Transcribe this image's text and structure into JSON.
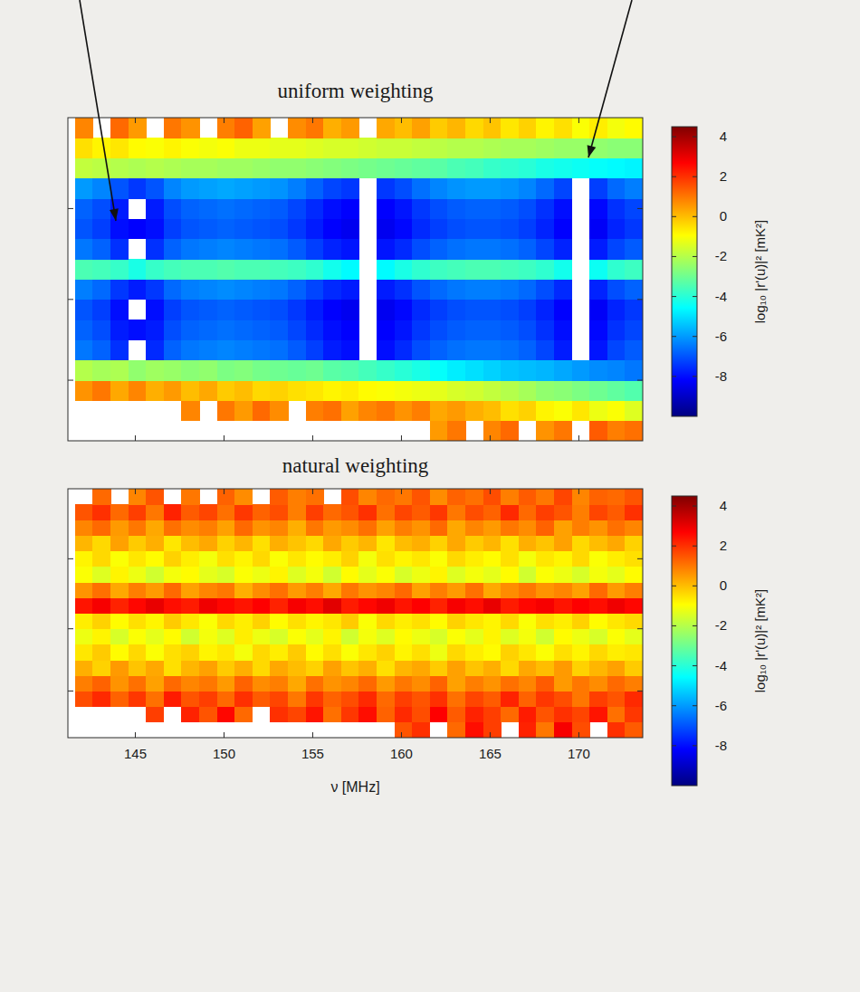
{
  "chart_data": [
    {
      "type": "heatmap",
      "title": "uniform weighting",
      "xlim": [
        141.2,
        173.6
      ],
      "xticks": [
        145,
        150,
        155,
        160,
        165,
        170
      ],
      "ylim": [
        0,
        16
      ],
      "yticks": [
        3,
        7,
        11.5
      ],
      "tick_labels": false,
      "x_bins": [
        141.6,
        142.6,
        143.6,
        144.6,
        145.6,
        146.6,
        147.6,
        148.6,
        149.6,
        150.6,
        151.6,
        152.6,
        153.6,
        154.6,
        155.6,
        156.6,
        157.6,
        158.6,
        159.6,
        160.6,
        161.6,
        162.6,
        163.6,
        164.6,
        165.6,
        166.6,
        167.6,
        168.6,
        169.6,
        170.6,
        171.6,
        172.6,
        173.6
      ],
      "y_bins": [
        0,
        1,
        2,
        3,
        4,
        5,
        6,
        7,
        8,
        9,
        10,
        11,
        12,
        13,
        14,
        15,
        16
      ],
      "cells": [
        [
          null,
          null,
          null,
          null,
          null,
          null,
          null,
          null,
          null,
          null,
          null,
          null,
          null,
          null,
          null,
          null,
          null,
          null,
          null,
          null,
          0.5,
          1,
          null,
          0.8,
          1.2,
          null,
          0.6,
          1,
          null,
          1.4,
          0.9,
          1.1
        ],
        [
          null,
          null,
          null,
          null,
          null,
          null,
          0.8,
          null,
          1,
          0.5,
          1.2,
          0.7,
          null,
          0.9,
          1.1,
          0.4,
          0.8,
          1,
          0.6,
          0.9,
          0.3,
          0.5,
          0.2,
          0,
          -0.5,
          -0.3,
          -0.8,
          -1,
          -0.6,
          -1.2,
          -1,
          -1.4
        ],
        [
          0.6,
          1,
          0.3,
          0.8,
          0.2,
          0.5,
          0,
          0.3,
          -0.2,
          0,
          -0.4,
          -0.3,
          -0.5,
          -0.6,
          -0.8,
          -0.7,
          -0.9,
          -1,
          -1.1,
          -1.2,
          -1.3,
          -1.5,
          -1.6,
          -1.8,
          -2,
          -2.2,
          -2.5,
          -2.6,
          -2.8,
          -3,
          -3.2,
          -3.4
        ],
        [
          -2,
          -2.2,
          -2.1,
          -2.5,
          -2.3,
          -2.4,
          -2.6,
          -2.5,
          -2.8,
          -2.7,
          -2.9,
          -3,
          -3.1,
          -3,
          -3.3,
          -3.4,
          -3.6,
          -3.8,
          -4,
          -4.2,
          -4.5,
          -4.8,
          -5,
          -5.2,
          -5.4,
          -5.5,
          -5.6,
          -5.8,
          -6,
          -6.2,
          -6.3,
          -6.5
        ],
        [
          -6.5,
          -6.8,
          -7.5,
          null,
          -7.6,
          -6.8,
          -6.5,
          -6.4,
          -6.3,
          -6.4,
          -6.5,
          -6.6,
          -6.9,
          -7.3,
          -7.8,
          -8,
          null,
          -8,
          -7.6,
          -7.1,
          -6.8,
          -6.6,
          -6.5,
          -6.5,
          -6.6,
          -6.8,
          -7.2,
          -7.8,
          null,
          -7.9,
          -7.2,
          -6.9
        ],
        [
          -6.8,
          -7.1,
          -7.8,
          -8,
          -7.8,
          -7.1,
          -6.8,
          -6.7,
          -6.6,
          -6.7,
          -6.8,
          -6.9,
          -7.2,
          -7.6,
          -8,
          -8.2,
          null,
          -8.2,
          -7.9,
          -7.4,
          -7.1,
          -6.9,
          -6.8,
          -6.8,
          -6.9,
          -7.1,
          -7.5,
          -8,
          null,
          -8.1,
          -7.5,
          -7.2
        ],
        [
          -7,
          -7.3,
          -8,
          null,
          -8,
          -7.3,
          -7,
          -6.9,
          -6.8,
          -6.9,
          -7,
          -7.1,
          -7.4,
          -7.8,
          -8.2,
          -8.4,
          null,
          -8.4,
          -8.1,
          -7.6,
          -7.3,
          -7.1,
          -7,
          -7,
          -7.1,
          -7.3,
          -7.7,
          -8.2,
          null,
          -8.3,
          -7.7,
          -7.4
        ],
        [
          -6.4,
          -6.7,
          -7.4,
          -7.8,
          -7.4,
          -6.7,
          -6.4,
          -6.3,
          -6.2,
          -6.3,
          -6.4,
          -6.5,
          -6.8,
          -7.2,
          -7.6,
          -7.8,
          null,
          -7.8,
          -7.5,
          -7,
          -6.7,
          -6.5,
          -6.4,
          -6.4,
          -6.5,
          -6.7,
          -7.1,
          -7.6,
          null,
          -7.7,
          -7.1,
          -6.8
        ],
        [
          -3.5,
          -3.6,
          -3.8,
          -4.2,
          -3.8,
          -3.6,
          -3.5,
          -3.5,
          -3.4,
          -3.5,
          -3.5,
          -3.6,
          -3.7,
          -3.9,
          -4.3,
          -4.6,
          null,
          -4.6,
          -4.2,
          -3.9,
          -3.7,
          -3.6,
          -3.5,
          -3.5,
          -3.6,
          -3.7,
          -3.9,
          -4.3,
          null,
          -4.4,
          -3.9,
          -3.7
        ],
        [
          -6.5,
          -6.8,
          -7.5,
          null,
          -7.5,
          -6.8,
          -6.5,
          -6.4,
          -6.3,
          -6.4,
          -6.5,
          -6.6,
          -6.9,
          -7.3,
          -7.7,
          -7.9,
          null,
          -7.9,
          -7.6,
          -7.1,
          -6.8,
          -6.6,
          -6.5,
          -6.5,
          -6.6,
          -6.8,
          -7.2,
          -7.7,
          null,
          -7.8,
          -7.2,
          -6.9
        ],
        [
          -7,
          -7.3,
          -8,
          -8.2,
          -8,
          -7.3,
          -7,
          -6.9,
          -6.8,
          -6.9,
          -7,
          -7.1,
          -7.4,
          -7.8,
          -8.2,
          -8.4,
          null,
          -8.4,
          -8.1,
          -7.6,
          -7.3,
          -7.1,
          -7,
          -7,
          -7.1,
          -7.3,
          -7.7,
          -8.2,
          null,
          -8.3,
          -7.7,
          -7.4
        ],
        [
          -6.8,
          -7.1,
          -7.8,
          null,
          -7.8,
          -7.1,
          -6.8,
          -6.7,
          -6.6,
          -6.7,
          -6.8,
          -6.9,
          -7.2,
          -7.6,
          -8,
          -8.2,
          null,
          -8.2,
          -7.9,
          -7.4,
          -7.1,
          -6.9,
          -6.8,
          -6.8,
          -6.9,
          -7.1,
          -7.5,
          -8,
          null,
          -8.1,
          -7.5,
          -7.2
        ],
        [
          -6,
          -6.3,
          -7,
          -7.4,
          -7,
          -6.3,
          -6,
          -5.9,
          -5.8,
          -5.9,
          -6,
          -6.1,
          -6.4,
          -6.8,
          -7.2,
          -7.4,
          null,
          -7.4,
          -7.1,
          -6.6,
          -6.3,
          -6.1,
          -6,
          -6,
          -6.1,
          -6.3,
          -6.7,
          -7.2,
          null,
          -7.3,
          -6.7,
          -6.4
        ],
        [
          -1.8,
          -1.9,
          -2,
          -2.1,
          -2,
          -2.1,
          -2.2,
          -2.2,
          -2.3,
          -2.3,
          -2.4,
          -2.5,
          -2.5,
          -2.6,
          -2.7,
          -2.8,
          -2.9,
          -3,
          -3.1,
          -3.2,
          -3.3,
          -3.5,
          -3.6,
          -3.8,
          -3.9,
          -4,
          -4.2,
          -4.3,
          -4.4,
          -4.5,
          -4.6,
          -4.7
        ],
        [
          -0.5,
          -0.8,
          -0.6,
          -0.9,
          -1,
          -0.8,
          -1,
          -1.1,
          -1,
          -1.2,
          -1.2,
          -1.3,
          -1.3,
          -1.4,
          -1.5,
          -1.5,
          -1.6,
          -1.7,
          -1.7,
          -1.8,
          -1.9,
          -2,
          -2,
          -2.1,
          -2.2,
          -2.2,
          -2.3,
          -2.4,
          -2.4,
          -2.5,
          -2.6,
          -2.6
        ],
        [
          0.8,
          null,
          1.2,
          0.5,
          null,
          1,
          0.6,
          null,
          0.9,
          1.3,
          0.4,
          null,
          0.7,
          1,
          0.2,
          0.5,
          null,
          0.3,
          0,
          0.4,
          -0.2,
          0.1,
          -0.4,
          -0.1,
          -0.6,
          -0.3,
          -0.8,
          -0.5,
          -1,
          -0.7,
          -1.1,
          -0.9
        ]
      ],
      "color_range": [
        -10,
        4.5
      ],
      "color_ticks": [
        -8,
        -6,
        -4,
        -2,
        0,
        2,
        4
      ],
      "color_label": "log₁₀ |r'(u)|² [mK²]"
    },
    {
      "type": "heatmap",
      "title": "natural weighting",
      "x_label": "ν [MHz]",
      "xlim": [
        141.2,
        173.6
      ],
      "xticks": [
        145,
        150,
        155,
        160,
        165,
        170
      ],
      "ylim": [
        0,
        16
      ],
      "yticks": [
        3,
        7,
        11.5
      ],
      "tick_labels": "x",
      "x_bins": [
        141.6,
        142.6,
        143.6,
        144.6,
        145.6,
        146.6,
        147.6,
        148.6,
        149.6,
        150.6,
        151.6,
        152.6,
        153.6,
        154.6,
        155.6,
        156.6,
        157.6,
        158.6,
        159.6,
        160.6,
        161.6,
        162.6,
        163.6,
        164.6,
        165.6,
        166.6,
        167.6,
        168.6,
        169.6,
        170.6,
        171.6,
        172.6,
        173.6
      ],
      "y_bins": [
        0,
        1,
        2,
        3,
        4,
        5,
        6,
        7,
        8,
        9,
        10,
        11,
        12,
        13,
        14,
        15,
        16
      ],
      "cells": [
        [
          null,
          null,
          null,
          null,
          null,
          null,
          null,
          null,
          null,
          null,
          null,
          null,
          null,
          null,
          null,
          null,
          null,
          null,
          1.5,
          2,
          null,
          1.2,
          2.5,
          1.8,
          null,
          2.2,
          1,
          2.8,
          1.6,
          null,
          2,
          1.4
        ],
        [
          null,
          null,
          null,
          null,
          1.8,
          null,
          2.2,
          1.5,
          2.6,
          1.2,
          null,
          2,
          1.7,
          2.4,
          1.1,
          1.9,
          2.5,
          1.3,
          2.1,
          1.6,
          2.7,
          1.4,
          2.2,
          1.8,
          1.2,
          2.3,
          1.5,
          2,
          1.7,
          2.4,
          1.1,
          1.9
        ],
        [
          1.6,
          2.1,
          1.3,
          1.9,
          1.1,
          2.3,
          1.5,
          1.8,
          1.2,
          2,
          1.4,
          1.7,
          1,
          1.9,
          1.3,
          1.6,
          2.1,
          1.2,
          1.8,
          1.5,
          2,
          1.1,
          1.7,
          1.4,
          2.2,
          1.3,
          1.9,
          1.6,
          1,
          1.8,
          1.5,
          2.1
        ],
        [
          0.9,
          1.3,
          0.6,
          1.1,
          0.4,
          1.2,
          0.8,
          1,
          0.5,
          1.3,
          0.7,
          0.9,
          0.3,
          1.1,
          0.6,
          0.8,
          1.2,
          0.5,
          1,
          0.7,
          1.3,
          0.4,
          0.9,
          0.6,
          1.1,
          0.8,
          1.4,
          0.5,
          1,
          0.7,
          1.2,
          0.9
        ],
        [
          0.2,
          -0.3,
          0.5,
          -0.1,
          0.3,
          -0.5,
          0.1,
          0.4,
          -0.2,
          0.2,
          -0.4,
          0.3,
          0,
          -0.3,
          0.4,
          -0.1,
          0.2,
          -0.5,
          0.1,
          0.3,
          -0.2,
          0.4,
          -0.1,
          0.2,
          -0.4,
          0.3,
          0,
          0.5,
          -0.3,
          0.1,
          0.4,
          -0.2
        ],
        [
          -0.6,
          -0.2,
          -0.9,
          -0.4,
          -1,
          -0.5,
          -0.3,
          -0.8,
          -0.6,
          -1.1,
          -0.4,
          -0.7,
          -0.2,
          -0.9,
          -0.5,
          -1,
          -0.6,
          -0.3,
          -0.8,
          -0.5,
          -1.2,
          -0.4,
          -0.7,
          -0.9,
          -0.3,
          -0.6,
          -1,
          -0.5,
          -0.8,
          -0.4,
          -0.7,
          -0.6
        ],
        [
          -1.2,
          -0.8,
          -1.5,
          -1,
          -1.3,
          -0.9,
          -1.6,
          -1.1,
          -1.4,
          -0.7,
          -1.2,
          -1.5,
          -1,
          -1.3,
          -0.8,
          -1.6,
          -1.1,
          -1.4,
          -0.9,
          -1.2,
          -1.5,
          -1,
          -1.3,
          -0.8,
          -1.4,
          -1.1,
          -1.6,
          -0.9,
          -1.2,
          -1.5,
          -1,
          -1.3
        ],
        [
          -0.7,
          -0.3,
          -0.9,
          -0.5,
          -0.8,
          -0.2,
          -0.6,
          -1,
          -0.4,
          -0.7,
          -0.3,
          -0.9,
          -0.5,
          -0.8,
          -0.6,
          -0.2,
          -1,
          -0.4,
          -0.7,
          -0.5,
          -0.9,
          -0.3,
          -0.6,
          -0.8,
          -0.4,
          -1,
          -0.5,
          -0.7,
          -0.3,
          -0.9,
          -0.6,
          -0.4
        ],
        [
          2.4,
          2.8,
          2.2,
          2.6,
          3,
          2.5,
          2.3,
          2.9,
          2.6,
          2.4,
          2.7,
          2.2,
          2.8,
          2.5,
          3.1,
          2.3,
          2.6,
          2.9,
          2.4,
          2.7,
          2.2,
          2.8,
          2.5,
          3,
          2.3,
          2.6,
          2.8,
          2.4,
          2.7,
          2.5,
          2.9,
          2.6
        ],
        [
          0.6,
          1.1,
          0.3,
          0.9,
          0.5,
          1.2,
          0.4,
          0.8,
          1,
          0.2,
          0.7,
          1.1,
          0.5,
          0.9,
          0.3,
          1,
          0.6,
          0.8,
          1.2,
          0.4,
          0.9,
          0.5,
          1.1,
          0.3,
          0.7,
          1,
          0.6,
          0.8,
          0.4,
          1.2,
          0.5,
          0.9
        ],
        [
          -1,
          -1.4,
          -0.8,
          -1.2,
          -1.6,
          -1.1,
          -0.9,
          -1.3,
          -1.5,
          -1,
          -1.2,
          -0.8,
          -1.4,
          -1.1,
          -1.6,
          -0.9,
          -1.3,
          -1,
          -1.5,
          -1.2,
          -0.8,
          -1.4,
          -1.1,
          -1.3,
          -0.9,
          -1.6,
          -1,
          -1.2,
          -1.5,
          -1.1,
          -1.3,
          -0.9
        ],
        [
          -0.8,
          -0.4,
          -1,
          -0.6,
          -0.9,
          -0.3,
          -0.7,
          -1.1,
          -0.5,
          -0.8,
          -0.4,
          -1,
          -0.6,
          -0.9,
          -0.7,
          -0.3,
          -1.1,
          -0.5,
          -0.8,
          -0.6,
          -1,
          -0.4,
          -0.7,
          -0.9,
          -0.5,
          -1.1,
          -0.6,
          -0.8,
          -0.4,
          -1,
          -0.7,
          -0.5
        ],
        [
          0.1,
          -0.4,
          0.4,
          -0.2,
          0.2,
          -0.6,
          0,
          0.3,
          -0.3,
          0.1,
          -0.5,
          0.2,
          -0.1,
          -0.4,
          0.3,
          -0.2,
          0.1,
          -0.6,
          0,
          0.2,
          -0.3,
          0.3,
          -0.2,
          0.1,
          -0.5,
          0.2,
          -0.1,
          0.4,
          -0.4,
          0,
          0.3,
          -0.3
        ],
        [
          0.8,
          1.2,
          0.5,
          1,
          0.3,
          1.1,
          0.7,
          0.9,
          0.4,
          1.2,
          0.6,
          0.8,
          0.2,
          1,
          0.5,
          0.7,
          1.1,
          0.4,
          0.9,
          0.6,
          1.2,
          0.3,
          0.8,
          0.5,
          1,
          0.7,
          1.3,
          0.4,
          0.9,
          0.6,
          1.1,
          0.8
        ],
        [
          1.5,
          2,
          1.2,
          1.8,
          1,
          2.2,
          1.4,
          1.7,
          1.1,
          1.9,
          1.3,
          1.6,
          0.9,
          1.8,
          1.2,
          1.5,
          2,
          1.1,
          1.7,
          1.4,
          1.9,
          1,
          1.6,
          1.3,
          2.1,
          1.2,
          1.8,
          1.5,
          0.9,
          1.7,
          1.4,
          2
        ],
        [
          null,
          1.2,
          null,
          0.8,
          1.5,
          null,
          1,
          null,
          1.3,
          0.7,
          null,
          1.4,
          0.9,
          1.1,
          null,
          1.6,
          0.8,
          1.2,
          1,
          1.5,
          0.7,
          1.3,
          1.1,
          1.6,
          0.9,
          1.4,
          1,
          1.7,
          0.8,
          1.3,
          1.2,
          1.5
        ]
      ],
      "color_range": [
        -10,
        4.5
      ],
      "color_ticks": [
        -8,
        -6,
        -4,
        -2,
        0,
        2,
        4
      ],
      "color_label": "log₁₀ |r'(u)|² [mK²]"
    }
  ]
}
